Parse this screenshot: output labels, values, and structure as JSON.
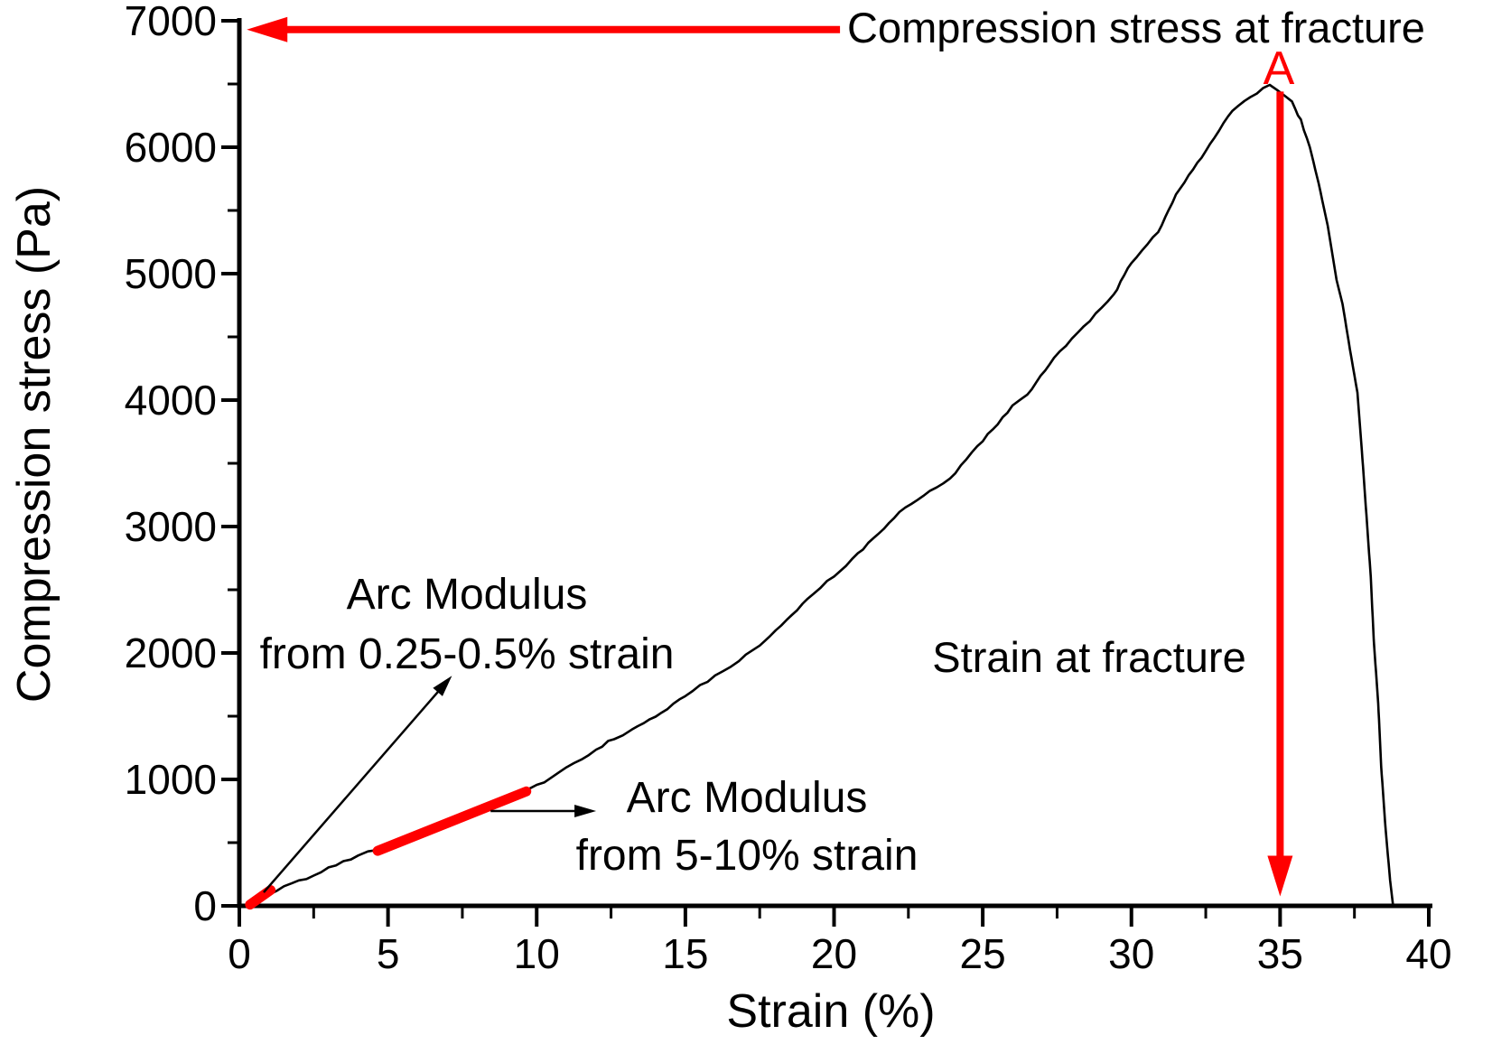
{
  "chart_data": {
    "type": "line",
    "title": "",
    "xlabel": "Strain (%)",
    "ylabel": "Compression stress (Pa)",
    "xlim": [
      0,
      40
    ],
    "ylim": [
      0,
      7000
    ],
    "x_ticks": [
      0,
      5,
      10,
      15,
      20,
      25,
      30,
      35,
      40
    ],
    "x_tick_labels": [
      "0",
      "5",
      "10",
      "15",
      "20",
      "25",
      "30",
      "35",
      "40"
    ],
    "x_minor_step": 2.5,
    "y_ticks": [
      0,
      1000,
      2000,
      3000,
      4000,
      5000,
      6000,
      7000
    ],
    "y_tick_labels": [
      "0",
      "1000",
      "2000",
      "3000",
      "4000",
      "5000",
      "6000",
      "7000"
    ],
    "y_minor_step": 500,
    "grid": false,
    "legend": false,
    "series": [
      {
        "name": "compression stress-strain curve",
        "color": "#000000",
        "x": [
          0.3,
          0.6,
          1,
          1.5,
          2,
          2.5,
          3,
          3.5,
          4,
          4.65,
          5,
          5.5,
          6,
          6.5,
          7,
          7.5,
          8,
          8.5,
          9,
          9.67,
          10,
          10.5,
          11,
          11.5,
          12,
          12.6,
          13.2,
          13.8,
          14.4,
          15,
          15.5,
          16,
          16.8,
          17.5,
          18.4,
          19.3,
          20,
          20.8,
          21.5,
          22.2,
          23,
          23.9,
          25,
          26,
          26.5,
          27.4,
          28.4,
          29.4,
          30,
          30.9,
          31.5,
          32.5,
          33.4,
          34,
          34.65,
          35.4,
          35.7,
          36,
          36.3,
          36.6,
          36.9,
          37.1,
          37.35,
          37.6,
          37.75,
          37.9,
          38.05,
          38.15,
          38.3,
          38.4,
          38.55,
          38.7,
          38.8
        ],
        "y": [
          0,
          45,
          95,
          150,
          200,
          240,
          295,
          345,
          400,
          444,
          470,
          515,
          560,
          610,
          655,
          700,
          745,
          795,
          845,
          916,
          950,
          1010,
          1090,
          1160,
          1240,
          1324,
          1390,
          1467,
          1560,
          1660,
          1740,
          1820,
          1940,
          2060,
          2260,
          2470,
          2610,
          2780,
          2950,
          3110,
          3250,
          3379,
          3680,
          3950,
          4040,
          4330,
          4580,
          4830,
          5090,
          5330,
          5620,
          5970,
          6290,
          6400,
          6490,
          6360,
          6210,
          6000,
          5710,
          5380,
          4950,
          4760,
          4400,
          4060,
          3600,
          3100,
          2600,
          2100,
          1600,
          1100,
          600,
          200,
          0
        ]
      }
    ],
    "peak_point": {
      "strain": 34.7,
      "stress": 6490
    },
    "fracture_strain": 35,
    "overlays": [
      {
        "name": "arc-modulus-segment-025-05",
        "type": "line-segment",
        "color": "#ff0000",
        "points": [
          [
            0.36,
            10
          ],
          [
            1.05,
            125
          ]
        ]
      },
      {
        "name": "arc-modulus-segment-5-10",
        "type": "line-segment",
        "color": "#ff0000",
        "points": [
          [
            4.65,
            435
          ],
          [
            9.65,
            905
          ]
        ]
      }
    ],
    "arrows": [
      {
        "name": "compression-stress-at-fracture-arrow",
        "color": "#ff0000",
        "from": [
          20.2,
          6930
        ],
        "to": [
          0.25,
          6930
        ],
        "weight": "thick"
      },
      {
        "name": "strain-at-fracture-arrow",
        "color": "#ff0000",
        "from": [
          35,
          6440
        ],
        "to": [
          35,
          75
        ],
        "weight": "thick"
      },
      {
        "name": "arc-modulus-1-arrow",
        "color": "#000000",
        "from": [
          0.82,
          107
        ],
        "to": [
          7.15,
          1820
        ],
        "weight": "thin"
      },
      {
        "name": "arc-modulus-2-arrow",
        "color": "#000000",
        "from": [
          8.45,
          750
        ],
        "to": [
          12.0,
          750
        ],
        "weight": "thin"
      }
    ]
  },
  "annotations": {
    "top_arrow_label": "Compression stress at fracture",
    "peak_label": "A",
    "strain_fracture_label": "Strain at fracture",
    "arc_modulus_1": {
      "line1": "Arc Modulus",
      "line2": "from 0.25-0.5% strain"
    },
    "arc_modulus_2": {
      "line1": "Arc Modulus",
      "line2": "from 5-10% strain"
    }
  },
  "colors": {
    "curve": "#000000",
    "accent": "#ff0000",
    "axis": "#000000",
    "background": "#ffffff"
  }
}
